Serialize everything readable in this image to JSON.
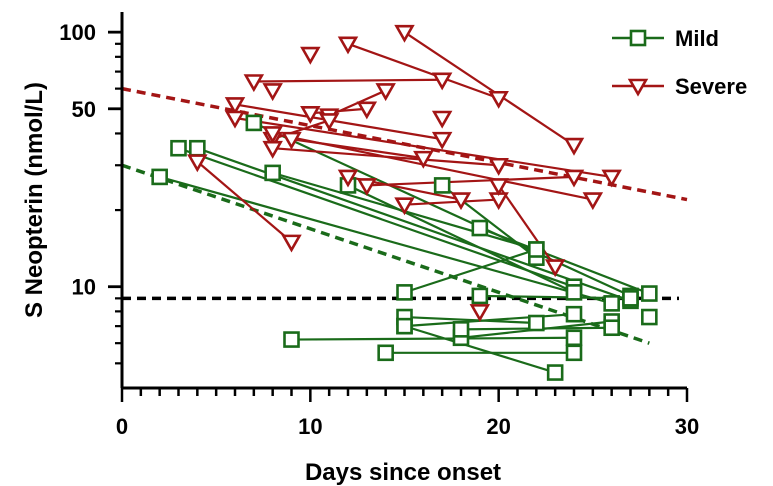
{
  "chart_data": {
    "type": "line",
    "title": "",
    "xlabel": "Days since onset",
    "ylabel": "S Neopterin (nmol/L)",
    "xlim": [
      0,
      30
    ],
    "ylim": [
      4,
      120
    ],
    "yscale": "log",
    "x_ticks": [
      0,
      10,
      20,
      30
    ],
    "x_tick_labels": [
      "0",
      "10",
      "20",
      "30"
    ],
    "y_ticks": [
      10,
      50,
      100
    ],
    "y_tick_labels": [
      "10",
      "50",
      "100"
    ],
    "grid": false,
    "legend_position": "top-right",
    "series": [
      {
        "name": "Mild",
        "color": "#1a6b1a",
        "marker": "square",
        "subjects": [
          [
            [
              3,
              35
            ],
            [
              24,
              10
            ]
          ],
          [
            [
              4,
              35
            ],
            [
              27,
              8.8
            ]
          ],
          [
            [
              2,
              27
            ],
            [
              26,
              8.6
            ]
          ],
          [
            [
              7,
              44
            ],
            [
              27,
              9.2
            ]
          ],
          [
            [
              8,
              28
            ],
            [
              22,
              14
            ]
          ],
          [
            [
              12,
              25
            ],
            [
              24,
              9.5
            ]
          ],
          [
            [
              17,
              25
            ],
            [
              22,
              13
            ]
          ],
          [
            [
              19,
              17
            ],
            [
              28,
              9.4
            ]
          ],
          [
            [
              15,
              9.5
            ],
            [
              22,
              14
            ]
          ],
          [
            [
              19,
              9.2
            ],
            [
              27,
              9.0
            ]
          ],
          [
            [
              15,
              7.0
            ],
            [
              24,
              7.8
            ]
          ],
          [
            [
              18,
              6.3
            ],
            [
              26,
              7.3
            ]
          ],
          [
            [
              15,
              7.6
            ],
            [
              22,
              7.2
            ]
          ],
          [
            [
              18,
              6.8
            ],
            [
              26,
              6.9
            ]
          ],
          [
            [
              9,
              6.2
            ],
            [
              24,
              6.3
            ]
          ],
          [
            [
              14,
              5.5
            ],
            [
              24,
              5.5
            ]
          ],
          [
            [
              15,
              7.0
            ],
            [
              23,
              4.6
            ]
          ],
          [
            [
              28,
              7.6
            ]
          ]
        ],
        "trend": [
          [
            0,
            30
          ],
          [
            28,
            6.0
          ]
        ]
      },
      {
        "name": "Severe",
        "color": "#a31515",
        "marker": "triangle-down",
        "subjects": [
          [
            [
              15,
              100
            ],
            [
              24,
              36
            ]
          ],
          [
            [
              12,
              90
            ],
            [
              20,
              55
            ]
          ],
          [
            [
              7,
              64
            ],
            [
              17,
              65
            ]
          ],
          [
            [
              10,
              82
            ]
          ],
          [
            [
              8,
              59
            ]
          ],
          [
            [
              6,
              52
            ],
            [
              17,
              38
            ]
          ],
          [
            [
              6,
              46
            ],
            [
              26,
              27
            ]
          ],
          [
            [
              11,
              47
            ],
            [
              14,
              59
            ]
          ],
          [
            [
              10,
              48
            ],
            [
              13,
              50
            ]
          ],
          [
            [
              11,
              45
            ],
            [
              8,
              38
            ]
          ],
          [
            [
              8,
              40
            ],
            [
              25,
              22
            ]
          ],
          [
            [
              9,
              38
            ],
            [
              16,
              32
            ]
          ],
          [
            [
              17,
              46
            ]
          ],
          [
            [
              8,
              35
            ],
            [
              20,
              30
            ]
          ],
          [
            [
              12,
              27
            ],
            [
              18,
              22
            ]
          ],
          [
            [
              13,
              25
            ],
            [
              24,
              27
            ]
          ],
          [
            [
              4,
              31
            ],
            [
              9,
              15
            ]
          ],
          [
            [
              15,
              21
            ],
            [
              20,
              22
            ]
          ],
          [
            [
              20,
              25
            ],
            [
              23,
              12
            ]
          ],
          [
            [
              19,
              8
            ]
          ]
        ],
        "trend": [
          [
            0,
            60
          ],
          [
            30,
            22
          ]
        ]
      }
    ],
    "reference_line": {
      "y": 9,
      "color": "#000000",
      "style": "dashed"
    }
  }
}
